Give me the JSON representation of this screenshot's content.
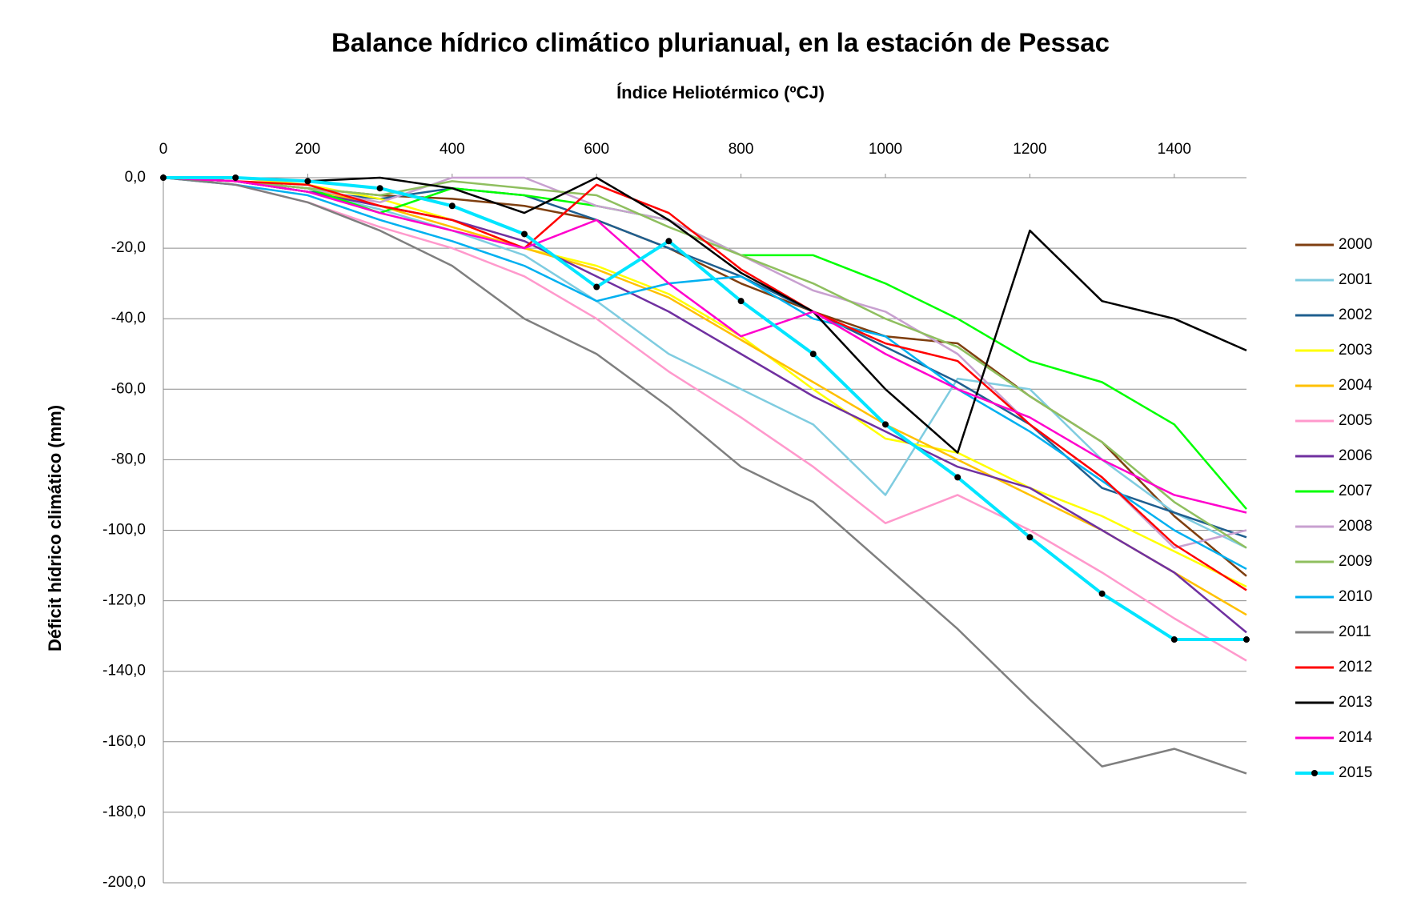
{
  "chart_data": {
    "type": "line",
    "title": "Balance hídrico climático plurianual, en la estación de Pessac",
    "x_label": "Índice Heliotérmico (ºCJ)",
    "y_label": "Déficit hídrico climático (mm)",
    "x": [
      0,
      100,
      200,
      300,
      400,
      500,
      600,
      700,
      800,
      900,
      1000,
      1100,
      1200,
      1300,
      1400,
      1500
    ],
    "xlim": [
      0,
      1500
    ],
    "xticks": [
      0,
      200,
      400,
      600,
      800,
      1000,
      1200,
      1400
    ],
    "ylim": [
      -200,
      0
    ],
    "yticks": [
      {
        "value": 0,
        "label": "0,0"
      },
      {
        "value": -20,
        "label": "-20,0"
      },
      {
        "value": -40,
        "label": "-40,0"
      },
      {
        "value": -60,
        "label": "-60,0"
      },
      {
        "value": -80,
        "label": "-80,0"
      },
      {
        "value": -100,
        "label": "-100,0"
      },
      {
        "value": -120,
        "label": "-120,0"
      },
      {
        "value": -140,
        "label": "-140,0"
      },
      {
        "value": -160,
        "label": "-160,0"
      },
      {
        "value": -180,
        "label": "-180,0"
      },
      {
        "value": -200,
        "label": "-200,0"
      }
    ],
    "grid": true,
    "legend": "right",
    "series": [
      {
        "name": "2000",
        "color": "#7f3f10",
        "values": [
          0,
          -1,
          -3,
          -5,
          -6,
          -8,
          -12,
          -20,
          -30,
          -38,
          -45,
          -47,
          -62,
          -75,
          -96,
          -113
        ]
      },
      {
        "name": "2001",
        "color": "#7fcce0",
        "values": [
          0,
          -1,
          -4,
          -9,
          -15,
          -22,
          -35,
          -50,
          -60,
          -70,
          -90,
          -57,
          -60,
          -80,
          -95,
          -105
        ]
      },
      {
        "name": "2002",
        "color": "#1f5f8f",
        "values": [
          0,
          -1,
          -4,
          -6,
          -3,
          -5,
          -12,
          -20,
          -28,
          -38,
          -48,
          -58,
          -70,
          -88,
          -95,
          -102
        ]
      },
      {
        "name": "2003",
        "color": "#ffff00",
        "values": [
          0,
          0,
          -2,
          -6,
          -12,
          -20,
          -25,
          -33,
          -45,
          -60,
          -74,
          -78,
          -88,
          -96,
          -106,
          -116
        ]
      },
      {
        "name": "2004",
        "color": "#ffc000",
        "values": [
          0,
          -1,
          -3,
          -8,
          -14,
          -20,
          -26,
          -34,
          -46,
          -58,
          -70,
          -80,
          -90,
          -100,
          -112,
          -124
        ]
      },
      {
        "name": "2005",
        "color": "#ff99cc",
        "values": [
          0,
          -2,
          -7,
          -14,
          -20,
          -28,
          -40,
          -55,
          -68,
          -82,
          -98,
          -90,
          -100,
          -112,
          -125,
          -137
        ]
      },
      {
        "name": "2006",
        "color": "#7030a0",
        "values": [
          0,
          -1,
          -4,
          -8,
          -12,
          -18,
          -28,
          -38,
          -50,
          -62,
          -72,
          -82,
          -88,
          -100,
          -112,
          -129
        ]
      },
      {
        "name": "2007",
        "color": "#00ff00",
        "values": [
          0,
          -1,
          -3,
          -10,
          -3,
          -5,
          -8,
          -12,
          -22,
          -22,
          -30,
          -40,
          -52,
          -58,
          -70,
          -94
        ]
      },
      {
        "name": "2008",
        "color": "#c8a0d0",
        "values": [
          0,
          -1,
          -3,
          -7,
          0,
          0,
          -8,
          -12,
          -22,
          -32,
          -38,
          -50,
          -70,
          -85,
          -105,
          -100
        ]
      },
      {
        "name": "2009",
        "color": "#8fbf5f",
        "values": [
          0,
          -1,
          -3,
          -5,
          -1,
          -3,
          -5,
          -14,
          -22,
          -30,
          -40,
          -48,
          -62,
          -75,
          -92,
          -105
        ]
      },
      {
        "name": "2010",
        "color": "#00b0f0",
        "values": [
          0,
          -2,
          -5,
          -12,
          -18,
          -25,
          -35,
          -30,
          -28,
          -40,
          -45,
          -60,
          -72,
          -86,
          -100,
          -111
        ]
      },
      {
        "name": "2011",
        "color": "#7f7f7f",
        "values": [
          0,
          -2,
          -7,
          -15,
          -25,
          -40,
          -50,
          -65,
          -82,
          -92,
          -110,
          -128,
          -148,
          -167,
          -162,
          -169
        ]
      },
      {
        "name": "2012",
        "color": "#ff0000",
        "values": [
          0,
          -1,
          -2,
          -8,
          -12,
          -20,
          -2,
          -10,
          -26,
          -38,
          -47,
          -52,
          -70,
          -85,
          -104,
          -117
        ]
      },
      {
        "name": "2013",
        "color": "#000000",
        "values": [
          0,
          0,
          -1,
          0,
          -3,
          -10,
          0,
          -12,
          -27,
          -38,
          -60,
          -78,
          -15,
          -35,
          -40,
          -49
        ]
      },
      {
        "name": "2014",
        "color": "#ff00cc",
        "values": [
          0,
          -1,
          -4,
          -10,
          -15,
          -20,
          -12,
          -30,
          -45,
          -38,
          -50,
          -60,
          -68,
          -80,
          -90,
          -95
        ]
      },
      {
        "name": "2015",
        "color": "#00e5ff",
        "marker": true,
        "values": [
          0,
          0,
          -1,
          -3,
          -8,
          -16,
          -31,
          -18,
          -35,
          -50,
          -70,
          -85,
          -102,
          -118,
          -131,
          -131
        ]
      }
    ]
  }
}
